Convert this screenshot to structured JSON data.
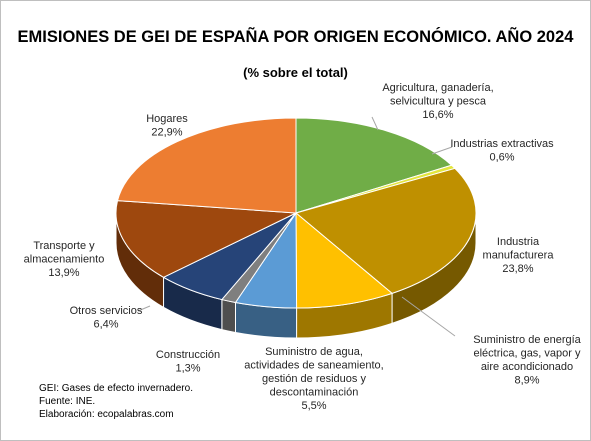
{
  "chart_data": {
    "type": "pie",
    "title": "EMISIONES DE GEI DE ESPAÑA POR ORIGEN ECONÓMICO. AÑO 2024",
    "subtitle": "(% sobre el total)",
    "unit": "%",
    "slices": [
      {
        "name": "Agricultura, ganadería, selvicultura y pesca",
        "label_lines": [
          "Agricultura, ganadería,",
          "selvicultura y pesca"
        ],
        "value": 16.6,
        "value_label": "16,6%",
        "color": "#70ad47"
      },
      {
        "name": "Industrias extractivas",
        "label_lines": [
          "Industrias extractivas"
        ],
        "value": 0.6,
        "value_label": "0,6%",
        "color": "#e3e63c"
      },
      {
        "name": "Industria manufacturera",
        "label_lines": [
          "Industria",
          "manufacturera"
        ],
        "value": 23.8,
        "value_label": "23,8%",
        "color": "#bf9000"
      },
      {
        "name": "Suministro de energía eléctrica, gas, vapor y aire acondicionado",
        "label_lines": [
          "Suministro de energía",
          "eléctrica, gas, vapor y",
          "aire acondicionado"
        ],
        "value": 8.9,
        "value_label": "8,9%",
        "color": "#ffc000"
      },
      {
        "name": "Suministro de agua, actividades de saneamiento, gestión de residuos y descontaminación",
        "label_lines": [
          "Suministro de agua,",
          "actividades de saneamiento,",
          "gestión de residuos y",
          "descontaminación"
        ],
        "value": 5.5,
        "value_label": "5,5%",
        "color": "#5b9bd5"
      },
      {
        "name": "Construcción",
        "label_lines": [
          "Construcción"
        ],
        "value": 1.3,
        "value_label": "1,3%",
        "color": "#7f7f7f"
      },
      {
        "name": "Otros servicios",
        "label_lines": [
          "Otros servicios"
        ],
        "value": 6.4,
        "value_label": "6,4%",
        "color": "#264478"
      },
      {
        "name": "Transporte y almacenamiento",
        "label_lines": [
          "Transporte y",
          "almacenamiento"
        ],
        "value": 13.9,
        "value_label": "13,9%",
        "color": "#9e480e"
      },
      {
        "name": "Hogares",
        "label_lines": [
          "Hogares"
        ],
        "value": 22.9,
        "value_label": "22,9%",
        "color": "#ed7d31"
      }
    ]
  },
  "notes": [
    "GEI: Gases de efecto invernadero.",
    "Fuente: INE.",
    "Elaboración: ecopalabras.com"
  ]
}
